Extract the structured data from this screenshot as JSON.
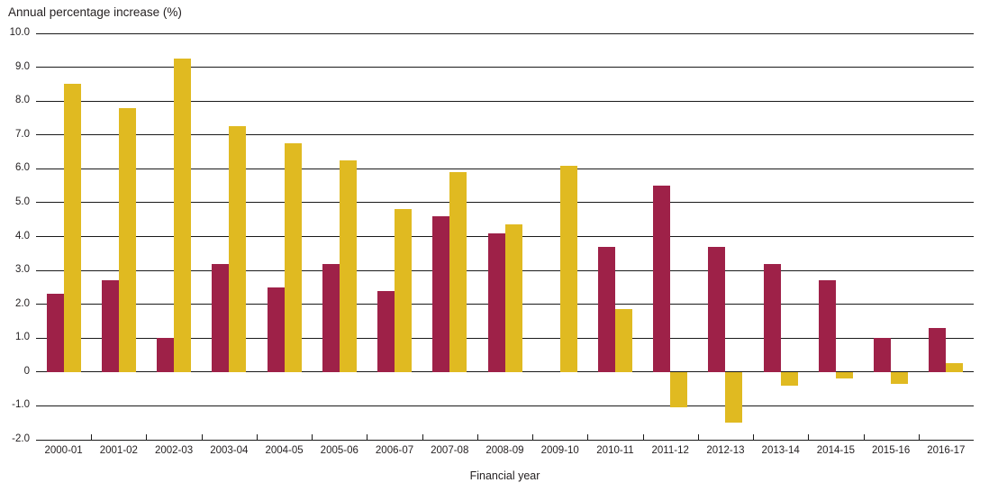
{
  "chart_data": {
    "type": "bar",
    "title": "Annual percentage increase (%)",
    "xlabel": "Financial year",
    "categories": [
      "2000-01",
      "2001-02",
      "2002-03",
      "2003-04",
      "2004-05",
      "2005-06",
      "2006-07",
      "2007-08",
      "2008-09",
      "2009-10",
      "2010-11",
      "2011-12",
      "2012-13",
      "2013-14",
      "2014-15",
      "2015-16",
      "2016-17"
    ],
    "series": [
      {
        "name": "maroon-series",
        "color": "#9e2148",
        "values": [
          2.3,
          2.7,
          1.0,
          3.2,
          2.5,
          3.2,
          2.4,
          4.6,
          4.1,
          0,
          3.7,
          5.5,
          3.7,
          3.2,
          2.7,
          1.0,
          1.3
        ]
      },
      {
        "name": "gold-series",
        "color": "#e0ba21",
        "values": [
          8.5,
          7.8,
          9.25,
          7.25,
          6.75,
          6.25,
          4.8,
          5.9,
          4.35,
          6.1,
          1.85,
          -1.05,
          -1.5,
          -0.4,
          -0.2,
          -0.35,
          0.25
        ]
      }
    ],
    "ylim": [
      -2.0,
      10.0
    ],
    "ytick_step": 1.0,
    "ytick_labels": [
      "10.0",
      "9.0",
      "8.0",
      "7.0",
      "6.0",
      "5.0",
      "4.0",
      "3.0",
      "2.0",
      "1.0",
      "0",
      "-1.0",
      "-2.0"
    ],
    "grid": true,
    "legend": "none",
    "colors": {
      "axis_line": "#1a1a1a",
      "text": "#231f20",
      "background": "#ffffff"
    }
  }
}
